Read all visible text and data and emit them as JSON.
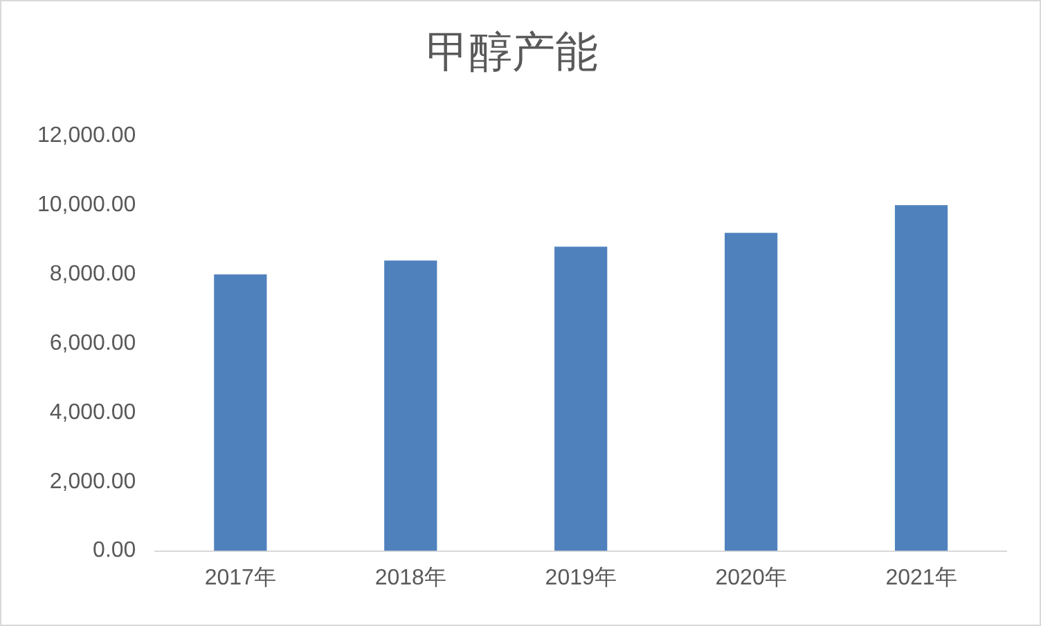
{
  "chart_data": {
    "type": "bar",
    "title": "甲醇产能",
    "categories": [
      "2017年",
      "2018年",
      "2019年",
      "2020年",
      "2021年"
    ],
    "values": [
      8000,
      8400,
      8800,
      9200,
      10000
    ],
    "color": "#4f81bd",
    "ylim": [
      0,
      12000
    ],
    "yticks": [
      {
        "value": 0,
        "label": "0.00"
      },
      {
        "value": 2000,
        "label": "2,000.00"
      },
      {
        "value": 4000,
        "label": "4,000.00"
      },
      {
        "value": 6000,
        "label": "6,000.00"
      },
      {
        "value": 8000,
        "label": "8,000.00"
      },
      {
        "value": 10000,
        "label": "10,000.00"
      },
      {
        "value": 12000,
        "label": "12,000.00"
      }
    ]
  }
}
